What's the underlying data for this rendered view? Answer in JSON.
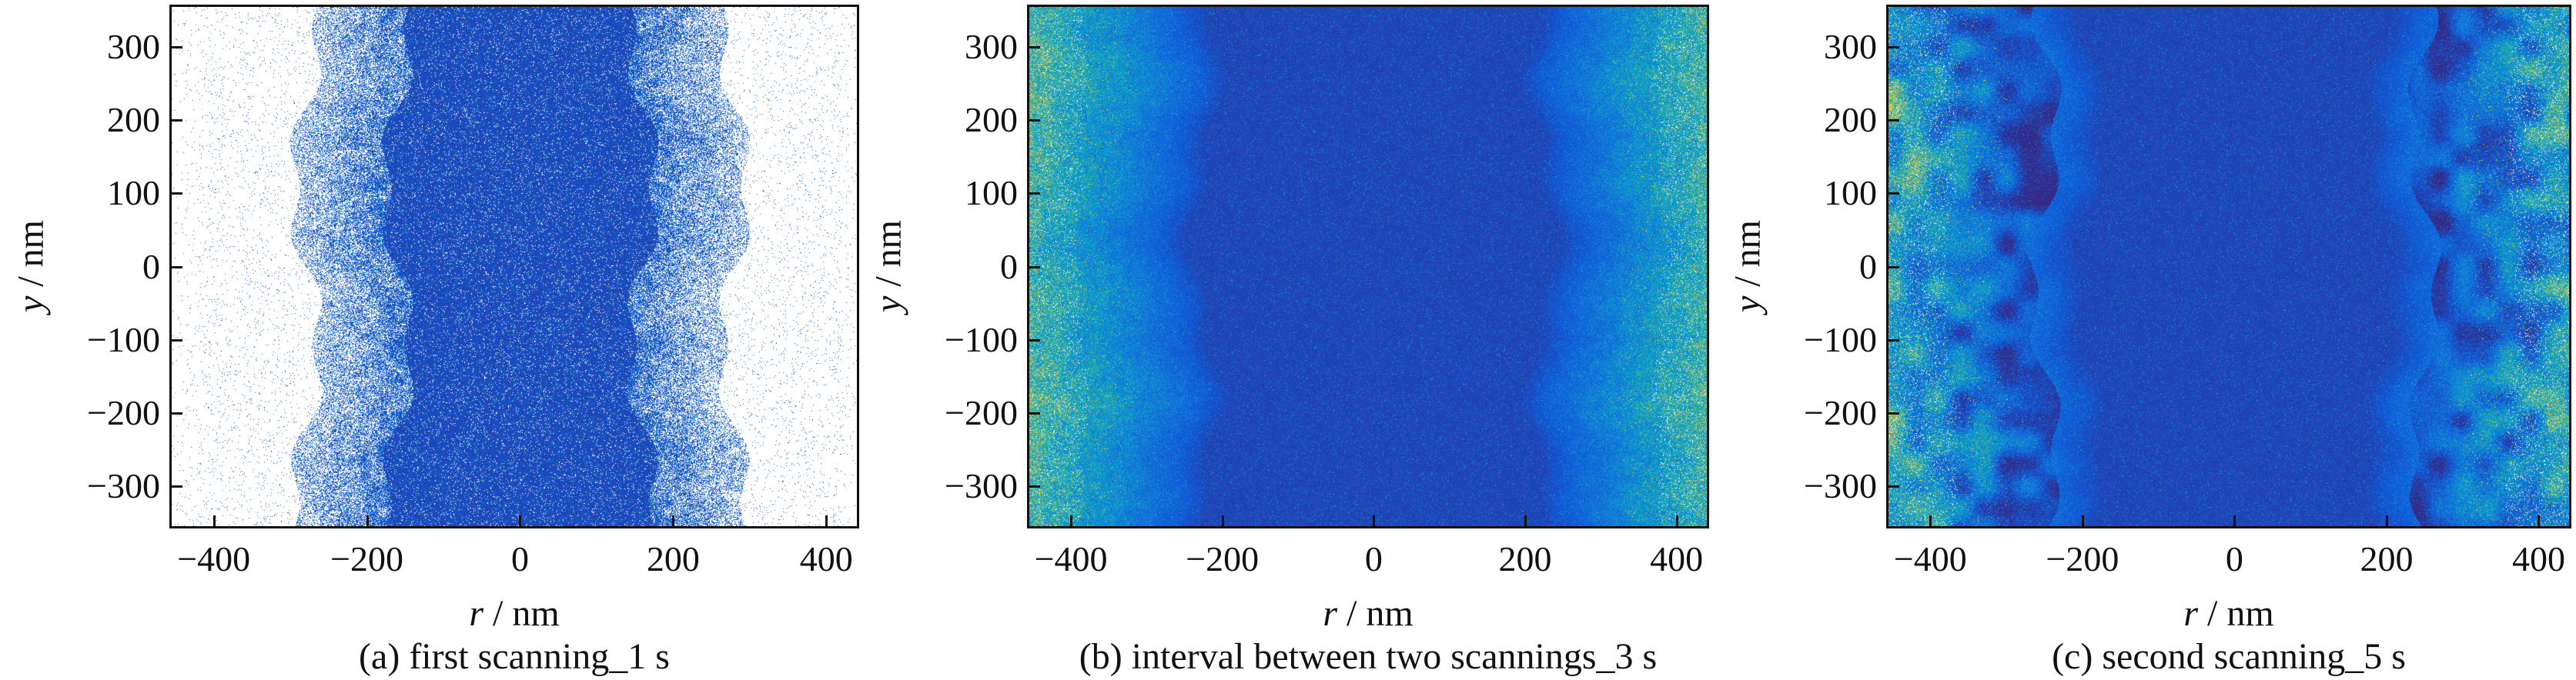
{
  "chart_data": [
    {
      "type": "scatter",
      "caption": "(a) first scanning_1 s",
      "xlabel_var": "r",
      "xlabel_unit": " / nm",
      "ylabel_var": "y",
      "ylabel_unit": " / nm",
      "xlim": [
        -455,
        440
      ],
      "ylim": [
        -355,
        355
      ],
      "xticks": [
        -400,
        -200,
        0,
        200,
        400
      ],
      "yticks": [
        300,
        200,
        100,
        0,
        -100,
        -200,
        -300
      ],
      "xtick_labels": [
        "−400",
        "−200",
        "0",
        "200",
        "400"
      ],
      "ytick_labels": [
        "300",
        "200",
        "100",
        "0",
        "−100",
        "−200",
        "−300"
      ],
      "colormap": "parula",
      "background": "#ffffff",
      "dense_core_halfwidth": 200,
      "sparse_extent": 420
    },
    {
      "type": "scatter",
      "caption": "(b) interval between two scannings_3 s",
      "xlabel_var": "r",
      "xlabel_unit": " / nm",
      "ylabel_var": "y",
      "ylabel_unit": " / nm",
      "xlim": [
        -455,
        440
      ],
      "ylim": [
        -355,
        355
      ],
      "xticks": [
        -400,
        -200,
        0,
        200,
        400
      ],
      "yticks": [
        300,
        200,
        100,
        0,
        -100,
        -200,
        -300
      ],
      "xtick_labels": [
        "−400",
        "−200",
        "0",
        "200",
        "400"
      ],
      "ytick_labels": [
        "300",
        "200",
        "100",
        "0",
        "−100",
        "−200",
        "−300"
      ],
      "colormap": "parula",
      "dense_core_halfwidth": 280
    },
    {
      "type": "scatter",
      "caption": "(c) second scanning_5 s",
      "xlabel_var": "r",
      "xlabel_unit": " / nm",
      "ylabel_var": "y",
      "ylabel_unit": " / nm",
      "xlim": [
        -455,
        440
      ],
      "ylim": [
        -355,
        355
      ],
      "xticks": [
        -400,
        -200,
        0,
        200,
        400
      ],
      "yticks": [
        300,
        200,
        100,
        0,
        -100,
        -200,
        -300
      ],
      "xtick_labels": [
        "−400",
        "−200",
        "0",
        "200",
        "400"
      ],
      "ytick_labels": [
        "300",
        "200",
        "100",
        "0",
        "−100",
        "−200",
        "−300"
      ],
      "colormap": "parula",
      "dense_core_halfwidth": 250
    }
  ]
}
